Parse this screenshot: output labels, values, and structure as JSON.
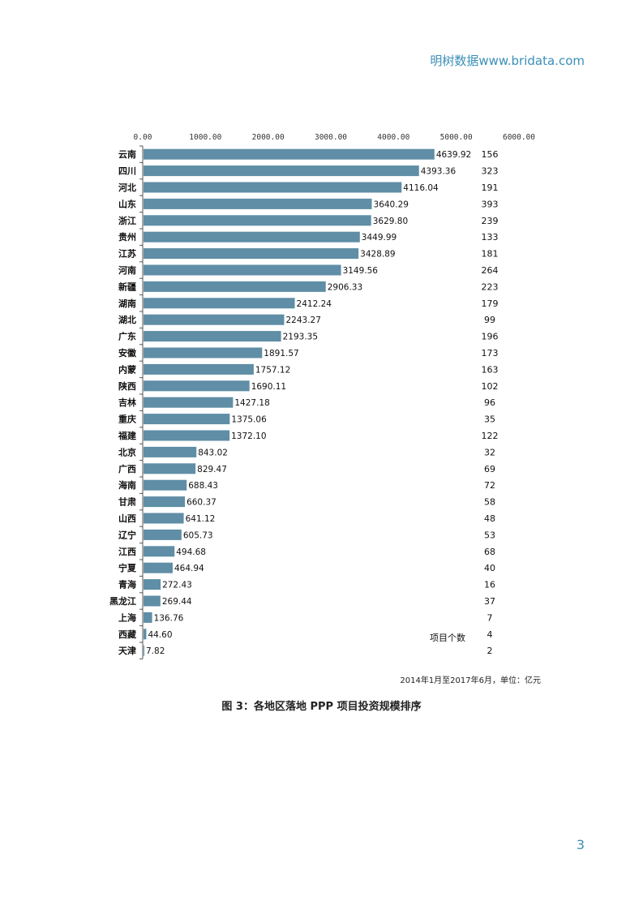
{
  "header": {
    "brand": "明树数据www.bridata.com"
  },
  "page_number": "3",
  "caption": "图 3：各地区落地 PPP 项目投资规模排序",
  "note": "2014年1月至2017年6月，单位：亿元",
  "count_label": "项目个数",
  "colors": {
    "bar": "#5f8ea6",
    "header": "#3a8fb7"
  },
  "chart_data": {
    "type": "bar",
    "orientation": "horizontal",
    "title": "",
    "xlim": [
      0,
      6000
    ],
    "x_ticks": [
      "0.00",
      "1000.00",
      "2000.00",
      "3000.00",
      "4000.00",
      "5000.00",
      "6000.00"
    ],
    "categories": [
      "云南",
      "四川",
      "河北",
      "山东",
      "浙江",
      "贵州",
      "江苏",
      "河南",
      "新疆",
      "湖南",
      "湖北",
      "广东",
      "安徽",
      "内蒙",
      "陕西",
      "吉林",
      "重庆",
      "福建",
      "北京",
      "广西",
      "海南",
      "甘肃",
      "山西",
      "辽宁",
      "江西",
      "宁夏",
      "青海",
      "黑龙江",
      "上海",
      "西藏",
      "天津"
    ],
    "values": [
      4639.92,
      4393.36,
      4116.04,
      3640.29,
      3629.8,
      3449.99,
      3428.89,
      3149.56,
      2906.33,
      2412.24,
      2243.27,
      2193.35,
      1891.57,
      1757.12,
      1690.11,
      1427.18,
      1375.06,
      1372.1,
      843.02,
      829.47,
      688.43,
      660.37,
      641.12,
      605.73,
      494.68,
      464.94,
      272.43,
      269.44,
      136.76,
      44.6,
      7.82
    ],
    "value_labels": [
      "4639.92",
      "4393.36",
      "4116.04",
      "3640.29",
      "3629.80",
      "3449.99",
      "3428.89",
      "3149.56",
      "2906.33",
      "2412.24",
      "2243.27",
      "2193.35",
      "1891.57",
      "1757.12",
      "1690.11",
      "1427.18",
      "1375.06",
      "1372.10",
      "843.02",
      "829.47",
      "688.43",
      "660.37",
      "641.12",
      "605.73",
      "494.68",
      "464.94",
      "272.43",
      "269.44",
      "136.76",
      "44.60",
      "7.82"
    ],
    "project_counts": [
      "156",
      "323",
      "191",
      "393",
      "239",
      "133",
      "181",
      "264",
      "223",
      "179",
      "99",
      "196",
      "173",
      "163",
      "102",
      "96",
      "35",
      "122",
      "32",
      "69",
      "72",
      "58",
      "48",
      "53",
      "68",
      "40",
      "16",
      "37",
      "7",
      "4",
      "2"
    ],
    "grid": false
  }
}
